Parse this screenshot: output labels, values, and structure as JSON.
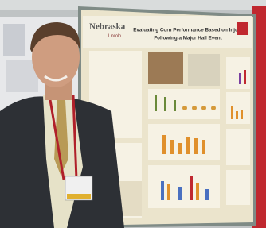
{
  "poster": {
    "logo": "Nebraska",
    "logo_sub": "Lincoln",
    "title_lines": [
      "Evaluating Corn Performance Based on Injury",
      "Following a Major Hail Event"
    ]
  }
}
